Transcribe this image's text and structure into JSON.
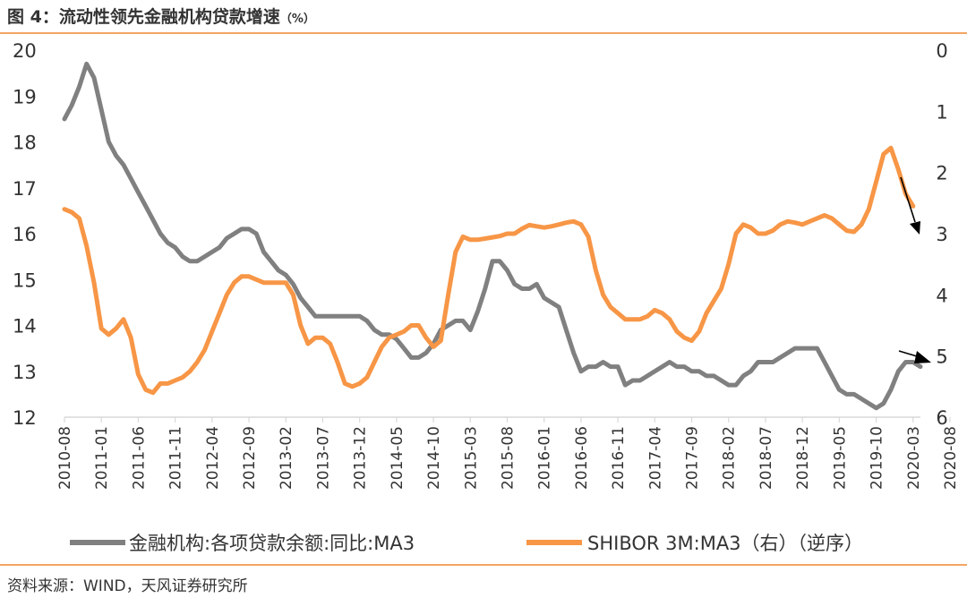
{
  "title": {
    "main": "图 4：流动性领先金融机构贷款增速",
    "unit": "（%）"
  },
  "source": "资料来源：WIND，天风证券研究所",
  "colors": {
    "loan": "#808080",
    "shibor": "#F79646",
    "axis": "#D9D9D9",
    "text": "#333333",
    "rule": "#F4A460"
  },
  "chart_data": {
    "type": "line",
    "title": "流动性领先金融机构贷款增速",
    "x_tick_labels": [
      "2010-08",
      "2011-01",
      "2011-06",
      "2011-11",
      "2012-04",
      "2012-09",
      "2013-02",
      "2013-07",
      "2013-12",
      "2014-05",
      "2014-10",
      "2015-03",
      "2015-08",
      "2016-01",
      "2016-06",
      "2016-11",
      "2017-04",
      "2017-09",
      "2018-02",
      "2018-07",
      "2018-12",
      "2019-05",
      "2019-10",
      "2020-03",
      "2020-08"
    ],
    "left_axis": {
      "ylim": [
        12,
        20
      ],
      "ticks": [
        "12",
        "13",
        "14",
        "15",
        "16",
        "17",
        "18",
        "19",
        "20"
      ]
    },
    "right_axis": {
      "ylim": [
        0,
        6
      ],
      "inverted": true,
      "ticks": [
        "0",
        "1",
        "2",
        "3",
        "4",
        "5",
        "6"
      ]
    },
    "legend_position": "bottom",
    "series": [
      {
        "name": "金融机构:各项贷款余额:同比:MA3",
        "axis": "left",
        "values": [
          18.5,
          18.8,
          19.2,
          19.7,
          19.4,
          18.7,
          18.0,
          17.7,
          17.5,
          17.2,
          16.9,
          16.6,
          16.3,
          16.0,
          15.8,
          15.7,
          15.5,
          15.4,
          15.4,
          15.5,
          15.6,
          15.7,
          15.9,
          16.0,
          16.1,
          16.1,
          16.0,
          15.6,
          15.4,
          15.2,
          15.1,
          14.9,
          14.6,
          14.4,
          14.2,
          14.2,
          14.2,
          14.2,
          14.2,
          14.2,
          14.2,
          14.1,
          13.9,
          13.8,
          13.8,
          13.7,
          13.5,
          13.3,
          13.3,
          13.4,
          13.6,
          13.9,
          14.0,
          14.1,
          14.1,
          13.9,
          14.3,
          14.8,
          15.4,
          15.4,
          15.2,
          14.9,
          14.8,
          14.8,
          14.9,
          14.6,
          14.5,
          14.4,
          13.9,
          13.4,
          13.0,
          13.1,
          13.1,
          13.2,
          13.1,
          13.1,
          12.7,
          12.8,
          12.8,
          12.9,
          13.0,
          13.1,
          13.2,
          13.1,
          13.1,
          13.0,
          13.0,
          12.9,
          12.9,
          12.8,
          12.7,
          12.7,
          12.9,
          13.0,
          13.2,
          13.2,
          13.2,
          13.3,
          13.4,
          13.5,
          13.5,
          13.5,
          13.5,
          13.2,
          12.9,
          12.6,
          12.5,
          12.5,
          12.4,
          12.3,
          12.2,
          12.3,
          12.6,
          13.0,
          13.2,
          13.2,
          13.1
        ]
      },
      {
        "name": "SHIBOR 3M:MA3（右）（逆序）",
        "axis": "right",
        "values": [
          2.6,
          2.65,
          2.75,
          3.2,
          3.8,
          4.55,
          4.65,
          4.55,
          4.4,
          4.7,
          5.3,
          5.55,
          5.6,
          5.45,
          5.45,
          5.4,
          5.35,
          5.25,
          5.1,
          4.9,
          4.6,
          4.3,
          4.0,
          3.8,
          3.7,
          3.7,
          3.75,
          3.8,
          3.8,
          3.8,
          3.8,
          4.0,
          4.5,
          4.8,
          4.7,
          4.7,
          4.8,
          5.1,
          5.45,
          5.5,
          5.45,
          5.35,
          5.1,
          4.85,
          4.7,
          4.65,
          4.6,
          4.5,
          4.5,
          4.7,
          4.85,
          4.75,
          4.0,
          3.3,
          3.05,
          3.1,
          3.1,
          3.08,
          3.06,
          3.04,
          3.0,
          3.0,
          2.92,
          2.86,
          2.88,
          2.9,
          2.88,
          2.85,
          2.82,
          2.8,
          2.85,
          3.05,
          3.6,
          4.0,
          4.2,
          4.3,
          4.4,
          4.4,
          4.4,
          4.35,
          4.25,
          4.3,
          4.4,
          4.6,
          4.7,
          4.75,
          4.6,
          4.3,
          4.1,
          3.9,
          3.5,
          3.0,
          2.85,
          2.9,
          3.0,
          3.0,
          2.95,
          2.85,
          2.8,
          2.82,
          2.85,
          2.8,
          2.75,
          2.7,
          2.75,
          2.85,
          2.95,
          2.97,
          2.85,
          2.6,
          2.15,
          1.7,
          1.6,
          1.95,
          2.35,
          2.55
        ]
      }
    ],
    "annotations": [
      "downward arrow (orange series)",
      "downward arrow (gray series)"
    ]
  }
}
